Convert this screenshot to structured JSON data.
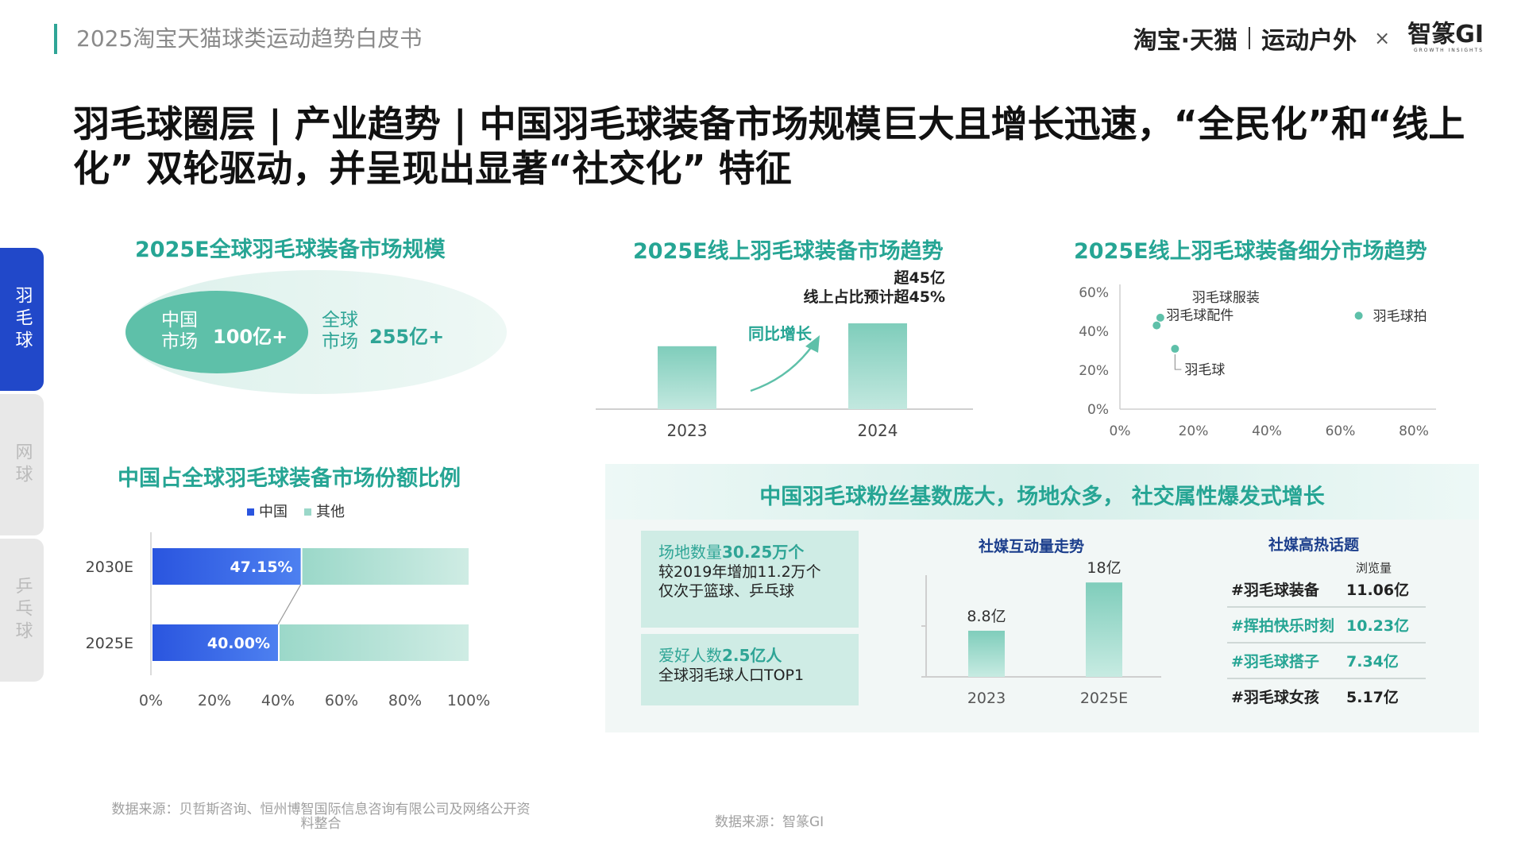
{
  "header": {
    "report_title": "2025淘宝天猫球类运动趋势白皮书",
    "brand_taobao": "淘宝·天猫",
    "brand_outdoor": "运动户外",
    "brand_x": "×",
    "brand_gi": "智篆GI",
    "brand_gi_sub": "GROWTH  INSIGHTS"
  },
  "main_title": "羽毛球圈层 | 产业趋势 | 中国羽毛球装备市场规模巨大且增长迅速，“全民化”和“线上化” 双轮驱动，并呈现出显著“社交化” 特征",
  "side_tabs": [
    {
      "label": "羽毛球",
      "active": true
    },
    {
      "label": "网球",
      "active": false
    },
    {
      "label": "乒乓球",
      "active": false
    }
  ],
  "market_size": {
    "title": "2025E全球羽毛球装备市场规模",
    "china_label": "中国市场",
    "china_value": "100亿+",
    "global_label": "全球市场",
    "global_value": "255亿+"
  },
  "online_trend": {
    "title": "2025E线上羽毛球装备市场趋势",
    "annotation_line1": "超45亿",
    "annotation_line2": "线上占比预计超45%",
    "yoy_label": "同比增长"
  },
  "segment_trend": {
    "title": "2025E线上羽毛球装备细分市场趋势"
  },
  "share_chart": {
    "title": "中国占全球羽毛球装备市场份额比例"
  },
  "social": {
    "title": "中国羽毛球粉丝基数庞大，场地众多， 社交属性爆发式增长",
    "venues_head": "场地数量",
    "venues_value": "30.25万个",
    "venues_line1": "较2019年增加11.2万个",
    "venues_line2": "仅次于篮球、乒乓球",
    "fans_head": "爱好人数",
    "fans_value": "2.5亿人",
    "fans_line1": "全球羽毛球人口TOP1",
    "interaction_title": "社媒互动量走势",
    "hot_title": "社媒高热话题",
    "hot_views_label": "浏览量",
    "hot_topics": [
      {
        "tag": "#羽毛球装备",
        "value": "11.06亿"
      },
      {
        "tag": "#挥拍快乐时刻",
        "value": "10.23亿"
      },
      {
        "tag": "#羽毛球搭子",
        "value": "7.34亿"
      },
      {
        "tag": "#羽毛球女孩",
        "value": "5.17亿"
      }
    ]
  },
  "sources": {
    "left": "数据来源：贝哲斯咨询、恒州博智国际信息咨询有限公司及网络公开资料整合",
    "right": "数据来源：智篆GI"
  },
  "colors": {
    "teal": "#26a594",
    "bar_teal": "#8fd3c4",
    "blue": "#2f5de0",
    "navy": "#1b3e8c",
    "active_tab": "#2148c9"
  },
  "chart_data": [
    {
      "id": "online_trend",
      "type": "bar",
      "categories": [
        "2023",
        "2024"
      ],
      "values": [
        33,
        45
      ],
      "ylim": [
        0,
        50
      ]
    },
    {
      "id": "segment_trend",
      "type": "scatter",
      "xlim": [
        0,
        80
      ],
      "ylim": [
        0,
        60
      ],
      "xticks": [
        "0%",
        "20%",
        "40%",
        "60%",
        "80%"
      ],
      "yticks": [
        "0%",
        "20%",
        "40%",
        "60%"
      ],
      "points": [
        {
          "label": "羽毛球服装",
          "x": 11,
          "y": 47
        },
        {
          "label": "羽毛球配件",
          "x": 10,
          "y": 43
        },
        {
          "label": "羽毛球",
          "x": 15,
          "y": 31
        },
        {
          "label": "羽毛球拍",
          "x": 65,
          "y": 48
        }
      ],
      "grid": false
    },
    {
      "id": "china_share",
      "type": "bar",
      "orientation": "horizontal",
      "stacked": true,
      "categories": [
        "2030E",
        "2025E"
      ],
      "series": [
        {
          "name": "中国",
          "values": [
            47.15,
            40.0
          ],
          "labels": [
            "47.15%",
            "40.00%"
          ]
        },
        {
          "name": "其他",
          "values": [
            52.85,
            60.0
          ]
        }
      ],
      "xlim": [
        0,
        100
      ],
      "xticks": [
        "0%",
        "20%",
        "40%",
        "60%",
        "80%",
        "100%"
      ],
      "legend": "top"
    },
    {
      "id": "social_interaction",
      "type": "bar",
      "categories": [
        "2023",
        "2025E"
      ],
      "values": [
        8.8,
        18
      ],
      "labels": [
        "8.8亿",
        "18亿"
      ],
      "ylim": [
        0,
        20
      ]
    }
  ]
}
